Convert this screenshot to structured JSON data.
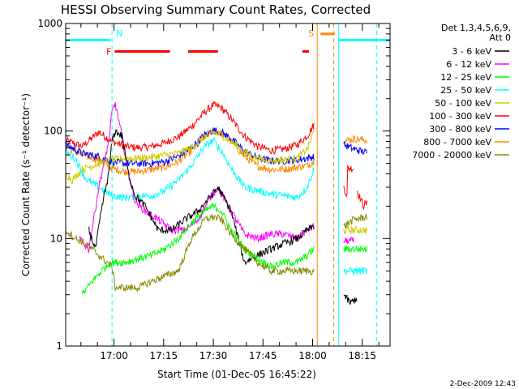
{
  "chart_data": {
    "type": "line",
    "title": "HESSI Observing Summary Count Rates, Corrected",
    "xlabel": "Start Time (01-Dec-05 16:45:22)",
    "ylabel": "Corrected Count Rate (s⁻¹ detector⁻¹)",
    "timestamp": "2-Dec-2009 12:43",
    "x_unit": "minutes after 16:45:22",
    "xlim": [
      0,
      98
    ],
    "ylim": [
      1,
      1000
    ],
    "yscale": "log",
    "grid": false,
    "legend_position": "right",
    "x_ticks": [
      {
        "label": "17:00",
        "value": 14.6
      },
      {
        "label": "17:15",
        "value": 29.6
      },
      {
        "label": "17:30",
        "value": 44.6
      },
      {
        "label": "17:45",
        "value": 59.6
      },
      {
        "label": "18:00",
        "value": 74.6
      },
      {
        "label": "18:15",
        "value": 89.6
      }
    ],
    "y_ticks": [
      {
        "label": "1",
        "value": 1
      },
      {
        "label": "10",
        "value": 10
      },
      {
        "label": "100",
        "value": 100
      },
      {
        "label": "1000",
        "value": 1000
      }
    ],
    "legend": {
      "header": [
        "Det 1,3,4,5,6,9,",
        "Att 0"
      ],
      "entries": [
        {
          "label": "3 - 6 keV",
          "color": "#000000"
        },
        {
          "label": "6 - 12 keV",
          "color": "#ff00ff"
        },
        {
          "label": "12 - 25 keV",
          "color": "#00ff00"
        },
        {
          "label": "25 - 50 keV",
          "color": "#00ffff"
        },
        {
          "label": "50 - 100 keV",
          "color": "#cccc00"
        },
        {
          "label": "100 - 300 keV",
          "color": "#ff0000"
        },
        {
          "label": "300 - 800 keV",
          "color": "#0000ff"
        },
        {
          "label": "800 - 7000 keV",
          "color": "#ff8800"
        },
        {
          "label": "7000 - 20000 keV",
          "color": "#888800"
        }
      ]
    },
    "markers": [
      {
        "label": "N",
        "color": "#00ffff",
        "x": 14.0
      },
      {
        "label": "S",
        "color": "#ff8800",
        "x": 75.5
      }
    ],
    "vertical_lines": [
      {
        "x": 14.0,
        "color": "#00ffff",
        "style": "dashed"
      },
      {
        "x": 76.0,
        "color": "#ff8800",
        "style": "solid"
      },
      {
        "x": 81.0,
        "color": "#ff8800",
        "style": "dashed"
      },
      {
        "x": 82.5,
        "color": "#00ffff",
        "style": "solid"
      },
      {
        "x": 94.0,
        "color": "#00ffff",
        "style": "dashed"
      }
    ],
    "bars": [
      {
        "name": "F",
        "color": "#ff0000",
        "y": 550,
        "label": "F",
        "segments": [
          [
            14.8,
            31.5
          ],
          [
            37.0,
            46.0
          ],
          [
            71.5,
            73.5
          ]
        ]
      },
      {
        "name": "N",
        "color": "#00ffff",
        "y": 700,
        "segments": [
          [
            0,
            13.6
          ],
          [
            82.5,
            98.0
          ]
        ]
      },
      {
        "name": "S",
        "color": "#ff8800",
        "y": 800,
        "segments": [
          [
            77.0,
            81.3
          ]
        ]
      }
    ],
    "series": [
      {
        "color": "#ff0000",
        "segments": [
          {
            "x": [
              0,
              5,
              10,
              14,
              18,
              22,
              26,
              30,
              34,
              38,
              42,
              44.6,
              47,
              50,
              54,
              58,
              62,
              66,
              70,
              73,
              75
            ],
            "y": [
              82,
              72,
              98,
              80,
              72,
              70,
              72,
              78,
              88,
              110,
              150,
              175,
              165,
              130,
              90,
              72,
              66,
              68,
              75,
              90,
              115
            ]
          },
          {
            "x": [
              84,
              85,
              85.1,
              87
            ],
            "y": [
              30,
              25,
              45,
              45
            ]
          },
          {
            "x": [
              88,
              90,
              90.1,
              91
            ],
            "y": [
              28,
              20,
              21,
              21
            ]
          }
        ]
      },
      {
        "color": "#ff8800",
        "segments": [
          {
            "x": [
              0,
              5,
              10,
              14,
              18,
              22,
              26,
              30,
              34,
              38,
              42,
              44.6,
              47,
              50,
              54,
              58,
              62,
              66,
              70,
              73,
              75
            ],
            "y": [
              72,
              60,
              54,
              45,
              42,
              42,
              44,
              46,
              52,
              65,
              88,
              100,
              95,
              80,
              58,
              47,
              44,
              44,
              46,
              48,
              52
            ]
          },
          {
            "x": [
              84,
              87,
              91
            ],
            "y": [
              80,
              85,
              82
            ]
          }
        ]
      },
      {
        "color": "#0000ff",
        "segments": [
          {
            "x": [
              0,
              5,
              10,
              14,
              18,
              22,
              26,
              30,
              34,
              38,
              42,
              44.6,
              47,
              50,
              54,
              58,
              62,
              66,
              70,
              73,
              75
            ],
            "y": [
              75,
              62,
              58,
              52,
              50,
              50,
              50,
              52,
              58,
              70,
              92,
              102,
              98,
              85,
              65,
              56,
              53,
              53,
              54,
              56,
              58
            ]
          },
          {
            "x": [
              84,
              87,
              91
            ],
            "y": [
              75,
              68,
              63
            ]
          }
        ]
      },
      {
        "color": "#cccc00",
        "segments": [
          {
            "x": [
              0,
              2,
              5,
              10,
              14,
              18,
              22,
              26,
              30,
              34,
              38,
              42,
              44.6,
              47,
              50,
              54,
              58,
              62,
              66,
              70,
              73,
              75
            ],
            "y": [
              40,
              35,
              44,
              50,
              54,
              56,
              56,
              57,
              60,
              62,
              70,
              88,
              98,
              92,
              80,
              64,
              55,
              53,
              54,
              56,
              68,
              100
            ]
          },
          {
            "x": [
              84,
              87,
              91
            ],
            "y": [
              12,
              12,
              12
            ]
          }
        ]
      },
      {
        "color": "#00ffff",
        "segments": [
          {
            "x": [
              0,
              3,
              6,
              10,
              14,
              18,
              22,
              26,
              30,
              34,
              38,
              42,
              44.6,
              47,
              50,
              54,
              58,
              62,
              66,
              70,
              73,
              75
            ],
            "y": [
              65,
              55,
              36,
              30,
              25,
              24,
              25,
              25,
              28,
              35,
              48,
              72,
              82,
              66,
              45,
              30,
              28,
              26,
              25,
              24,
              30,
              45
            ]
          },
          {
            "x": [
              84,
              87,
              91
            ],
            "y": [
              5,
              5,
              5
            ]
          }
        ]
      },
      {
        "color": "#ff00ff",
        "segments": [
          {
            "x": [
              4,
              7,
              10,
              13,
              14,
              15,
              17,
              19,
              21,
              24,
              28,
              32,
              36,
              40,
              44,
              46,
              50,
              54,
              58,
              62,
              66,
              70,
              73,
              75
            ],
            "y": [
              10,
              8,
              30,
              80,
              150,
              180,
              90,
              40,
              22,
              18,
              15,
              12,
              12,
              15,
              25,
              30,
              18,
              11,
              10,
              11,
              11,
              10,
              12,
              13
            ]
          },
          {
            "x": [
              84,
              87
            ],
            "y": [
              9.5,
              9.5
            ]
          }
        ]
      },
      {
        "color": "#000000",
        "segments": [
          {
            "x": [
              7,
              9,
              11,
              13,
              14,
              15,
              17,
              19,
              21,
              24,
              28,
              32,
              36,
              40,
              44,
              46,
              50,
              54,
              58,
              62,
              66,
              70,
              73,
              75
            ],
            "y": [
              12,
              8,
              20,
              40,
              80,
              100,
              90,
              40,
              25,
              20,
              12,
              12,
              15,
              18,
              25,
              30,
              18,
              6,
              7,
              8,
              9,
              10,
              12,
              13
            ]
          },
          {
            "x": [
              84,
              86,
              88
            ],
            "y": [
              3,
              2.5,
              2.8
            ]
          }
        ]
      },
      {
        "color": "#00ff00",
        "segments": [
          {
            "x": [
              5,
              8,
              12,
              14,
              18,
              22,
              26,
              30,
              34,
              38,
              42,
              44.6,
              47,
              50,
              54,
              58,
              62,
              66,
              70,
              73,
              75
            ],
            "y": [
              3,
              4,
              5.5,
              6,
              6,
              6.5,
              7,
              8,
              10,
              14,
              18,
              20,
              18,
              12,
              8,
              6.5,
              5.5,
              6,
              6,
              7,
              8
            ]
          },
          {
            "x": [
              84,
              87,
              91
            ],
            "y": [
              8,
              8,
              8
            ]
          }
        ]
      },
      {
        "color": "#888800",
        "segments": [
          {
            "x": [
              0,
              3,
              6,
              10,
              14,
              15,
              16,
              18,
              22,
              26,
              30,
              34,
              38,
              42,
              44.6,
              47,
              50,
              54,
              58,
              62,
              66,
              70,
              73,
              75
            ],
            "y": [
              12,
              10,
              9,
              7,
              5.5,
              3.5,
              3.5,
              3.5,
              3.5,
              4,
              4.5,
              5,
              10,
              15,
              16,
              15,
              11,
              8,
              6,
              5,
              5,
              5,
              5,
              5
            ]
          },
          {
            "x": [
              84,
              87,
              91
            ],
            "y": [
              13,
              15,
              16
            ]
          }
        ]
      }
    ]
  }
}
